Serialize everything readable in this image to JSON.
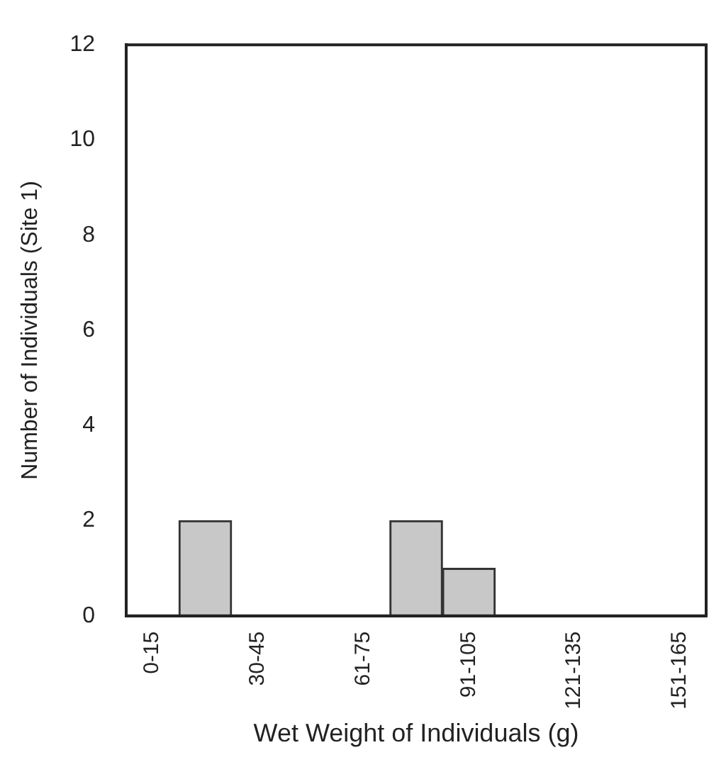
{
  "chart_data": {
    "type": "bar",
    "xlabel": "Wet Weight of Individuals (g)",
    "ylabel": "Number of Individuals (Site 1)",
    "categories": [
      "0-15",
      null,
      "30-45",
      null,
      "61-75",
      null,
      "91-105",
      null,
      "121-135",
      null,
      "151-165"
    ],
    "values": [
      0,
      2,
      0,
      0,
      0,
      2,
      1,
      0,
      0,
      0,
      0
    ],
    "color": "#c8c8c8",
    "ylim": [
      0,
      12
    ],
    "yticks": [
      0,
      2,
      4,
      6,
      8,
      10,
      12
    ],
    "grid": false,
    "legend": false
  }
}
